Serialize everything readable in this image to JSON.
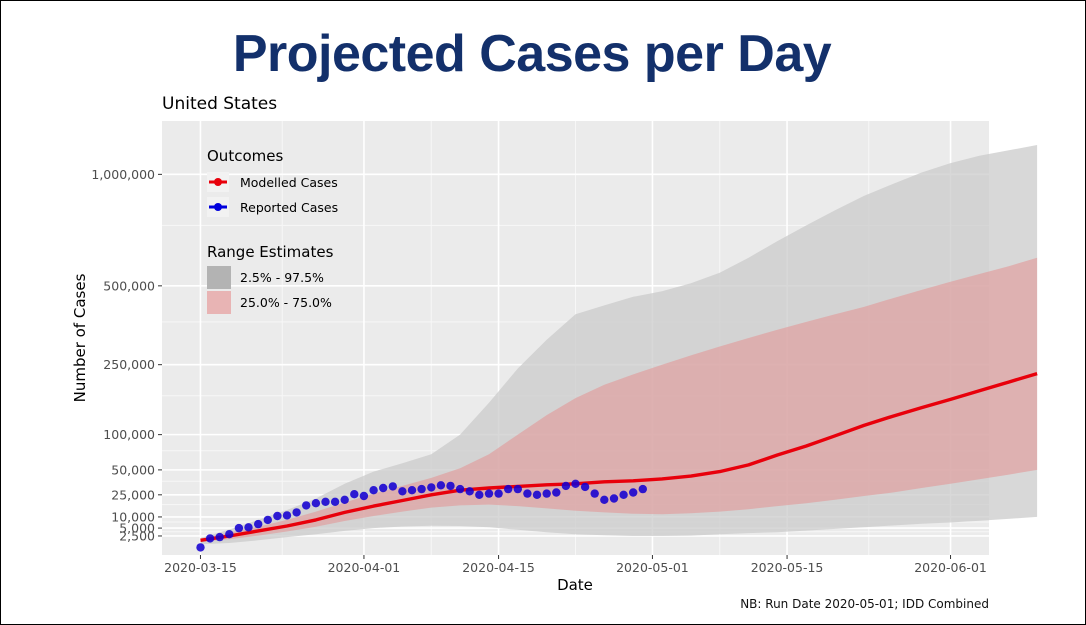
{
  "title": "Projected Cases per Day",
  "footnote": "NB: Run Date 2020-05-01; IDD Combined",
  "chart_data": {
    "type": "line",
    "subtitle": "United States",
    "xlabel": "Date",
    "ylabel": "Number of Cases",
    "x_ticks": [
      "2020-03-15",
      "2020-04-01",
      "2020-04-15",
      "2020-05-01",
      "2020-05-15",
      "2020-06-01"
    ],
    "y_ticks": [
      "1,000,000",
      "500,000",
      "250,000",
      "100,000",
      "50,000",
      "25,000",
      "10,000",
      "5,000",
      "2,500"
    ],
    "y_tick_values": [
      1000000,
      500000,
      250000,
      100000,
      50000,
      25000,
      10000,
      5000,
      2500
    ],
    "y_scale": "sqrt",
    "xlim": [
      "2020-03-11",
      "2020-06-05"
    ],
    "ylim": [
      0,
      1300000
    ],
    "legend": {
      "outcomes_title": "Outcomes",
      "outcomes": [
        {
          "label": "Modelled Cases",
          "color": "#e8000b"
        },
        {
          "label": "Reported Cases",
          "color": "#0000dd"
        }
      ],
      "range_title": "Range Estimates",
      "ranges": [
        {
          "label": "2.5% - 97.5%",
          "color": "#b3b3b3"
        },
        {
          "label": "25.0% - 75.0%",
          "color": "#e8b4b4"
        }
      ]
    },
    "modelled_cases": {
      "x": [
        0,
        3,
        6,
        9,
        12,
        15,
        18,
        21,
        24,
        27,
        30,
        33,
        36,
        39,
        42,
        45,
        48,
        51,
        54,
        57,
        60,
        63,
        66,
        69,
        72,
        75,
        78,
        81,
        84,
        87
      ],
      "y": [
        1500,
        2500,
        4000,
        5800,
        8500,
        12500,
        16500,
        20500,
        25000,
        29000,
        31000,
        32500,
        34000,
        35000,
        37000,
        38000,
        40000,
        43000,
        48000,
        56000,
        69000,
        82000,
        98000,
        116000,
        133000,
        150000,
        167000,
        186000,
        206000,
        227000
      ]
    },
    "band_95": {
      "x": [
        0,
        3,
        6,
        9,
        12,
        15,
        18,
        21,
        24,
        27,
        30,
        33,
        36,
        39,
        42,
        45,
        48,
        51,
        54,
        57,
        60,
        63,
        66,
        69,
        72,
        75,
        78,
        81,
        84,
        87
      ],
      "low": [
        800,
        1000,
        1500,
        2200,
        3000,
        4000,
        5000,
        5600,
        5900,
        5800,
        5300,
        4400,
        3600,
        3000,
        2700,
        2500,
        2500,
        2600,
        3000,
        3300,
        3600,
        4100,
        4700,
        5300,
        6000,
        6700,
        7300,
        8100,
        9000,
        10000
      ],
      "high": [
        2000,
        4500,
        8500,
        14000,
        22000,
        35000,
        48000,
        58000,
        70000,
        100000,
        160000,
        240000,
        320000,
        400000,
        430000,
        460000,
        480000,
        510000,
        550000,
        610000,
        680000,
        750000,
        820000,
        890000,
        950000,
        1010000,
        1060000,
        1100000,
        1130000,
        1160000
      ]
    },
    "band_50": {
      "x": [
        0,
        3,
        6,
        9,
        12,
        15,
        18,
        21,
        24,
        27,
        30,
        33,
        36,
        39,
        42,
        45,
        48,
        51,
        54,
        57,
        60,
        63,
        66,
        69,
        72,
        75,
        78,
        81,
        84,
        87
      ],
      "low": [
        1200,
        1700,
        2600,
        3800,
        5500,
        8000,
        10500,
        13000,
        15500,
        17000,
        17500,
        16500,
        15000,
        13500,
        12500,
        11800,
        11500,
        12000,
        13000,
        14500,
        16500,
        18500,
        21000,
        24000,
        27000,
        31000,
        35000,
        39500,
        44500,
        50000
      ],
      "high": [
        1800,
        3500,
        5500,
        8500,
        13000,
        19000,
        26000,
        33000,
        41000,
        52000,
        70000,
        100000,
        135000,
        170000,
        200000,
        225000,
        250000,
        275000,
        300000,
        325000,
        350000,
        375000,
        400000,
        425000,
        455000,
        485000,
        515000,
        545000,
        575000,
        610000
      ]
    },
    "reported_cases": {
      "x": [
        0,
        1,
        2,
        3,
        4,
        5,
        6,
        7,
        8,
        9,
        10,
        11,
        12,
        13,
        14,
        15,
        16,
        17,
        18,
        19,
        20,
        21,
        22,
        23,
        24,
        25,
        26,
        27,
        28,
        29,
        30,
        31,
        32,
        33,
        34,
        35,
        36,
        37,
        38,
        39,
        40,
        41,
        42,
        43,
        44,
        45,
        46
      ],
      "y": [
        400,
        1900,
        2200,
        3000,
        5000,
        5300,
        6600,
        8500,
        10500,
        10800,
        12500,
        17000,
        18500,
        19500,
        19500,
        21000,
        25500,
        24000,
        29000,
        31000,
        32500,
        28000,
        29000,
        30000,
        31500,
        33500,
        33000,
        30000,
        28000,
        25000,
        26000,
        26000,
        30000,
        30000,
        26000,
        25000,
        26000,
        27000,
        33000,
        35000,
        32000,
        26000,
        21000,
        22000,
        25000,
        27000,
        30000
      ]
    }
  }
}
